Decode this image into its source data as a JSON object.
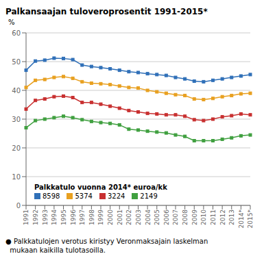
{
  "chart_data": {
    "type": "line",
    "title": "Palkansaajan tuloveroprosentit 1991-2015*",
    "subtitle": "● Palkkatulojen verotus kiristyy Veronmaksajain laskelman\n  mukaan kaikilla tulotasoilla.",
    "y_label": "%",
    "legend_title": "Palkkatulo vuonna 2014* euroa/kk",
    "categories": [
      "1991",
      "1992",
      "1993",
      "1994",
      "1995",
      "1996",
      "1997",
      "1998",
      "1999",
      "2000",
      "2001",
      "2002",
      "2003",
      "2004",
      "2005",
      "2006",
      "2007",
      "2008",
      "2009",
      "2010",
      "2011",
      "2012",
      "2013",
      "2014*",
      "2015*"
    ],
    "series": [
      {
        "name": "8598",
        "color": "#3070b8",
        "marker": "square",
        "values": [
          47.0,
          50.2,
          50.5,
          51.2,
          51.1,
          50.7,
          48.8,
          48.3,
          47.9,
          47.5,
          47.0,
          46.5,
          46.2,
          45.8,
          45.5,
          45.2,
          44.5,
          44.0,
          43.2,
          43.0,
          43.5,
          44.0,
          44.5,
          45.0,
          45.5
        ]
      },
      {
        "name": "5374",
        "color": "#e8a020",
        "marker": "square",
        "values": [
          41.0,
          43.5,
          43.8,
          44.5,
          44.8,
          44.2,
          43.0,
          42.5,
          42.3,
          42.0,
          41.5,
          41.0,
          40.8,
          40.0,
          39.5,
          39.0,
          38.5,
          38.2,
          37.0,
          36.8,
          37.2,
          37.8,
          38.2,
          38.8,
          39.0
        ]
      },
      {
        "name": "3224",
        "color": "#c83030",
        "marker": "square",
        "values": [
          33.5,
          36.5,
          37.0,
          37.8,
          38.0,
          37.5,
          35.8,
          35.8,
          35.2,
          34.5,
          33.8,
          33.0,
          32.5,
          32.0,
          31.8,
          31.5,
          31.5,
          31.0,
          29.8,
          29.5,
          30.0,
          30.8,
          31.2,
          31.8,
          31.5
        ]
      },
      {
        "name": "2149",
        "color": "#40a040",
        "marker": "square",
        "values": [
          27.0,
          29.5,
          30.0,
          30.5,
          31.0,
          30.5,
          29.8,
          29.2,
          28.8,
          28.5,
          28.0,
          26.5,
          26.2,
          25.8,
          25.5,
          25.2,
          24.5,
          24.0,
          22.5,
          22.5,
          22.5,
          23.0,
          23.5,
          24.2,
          24.5
        ]
      }
    ],
    "ylim": [
      0,
      60
    ],
    "yticks": [
      0,
      10,
      20,
      30,
      40,
      50,
      60
    ],
    "grid": true,
    "legend": "lower left"
  }
}
